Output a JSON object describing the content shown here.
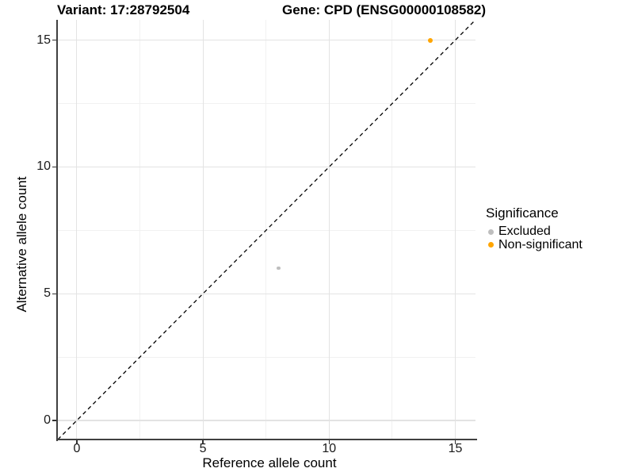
{
  "chart_data": {
    "type": "scatter",
    "title_left": "Variant: 17:28792504",
    "title_right": "Gene: CPD (ENSG00000108582)",
    "xlabel": "Reference allele count",
    "ylabel": "Alternative allele count",
    "xlim": [
      -0.75,
      15.8
    ],
    "ylim": [
      -0.75,
      15.8
    ],
    "x_major_ticks": [
      0,
      5,
      10,
      15
    ],
    "y_major_ticks": [
      0,
      5,
      10,
      15
    ],
    "x_minor_gridlines": [
      2.5,
      7.5,
      12.5
    ],
    "y_minor_gridlines": [
      2.5,
      7.5,
      12.5
    ],
    "grid": "major and minor gridlines, white background",
    "reference_line": {
      "type": "identity y=x",
      "style": "dashed",
      "color": "#000000"
    },
    "series": [
      {
        "name": "Excluded",
        "color": "#BEBEBE",
        "point_radius": 2.3,
        "points": [
          {
            "x": 8,
            "y": 6
          }
        ]
      },
      {
        "name": "Non-significant",
        "color": "#FFA500",
        "point_radius": 3,
        "points": [
          {
            "x": 14,
            "y": 15
          }
        ]
      }
    ],
    "legend": {
      "title": "Significance",
      "position": "right",
      "items": [
        {
          "label": "Excluded",
          "color": "#BEBEBE"
        },
        {
          "label": "Non-significant",
          "color": "#FFA500"
        }
      ]
    }
  },
  "colors": {
    "background": "#FFFFFF",
    "grid_major": "#E3E3E3",
    "grid_minor": "#F1F1F1",
    "axis_line": "#404040",
    "tick_mark": "#333333",
    "text": "#000000"
  }
}
